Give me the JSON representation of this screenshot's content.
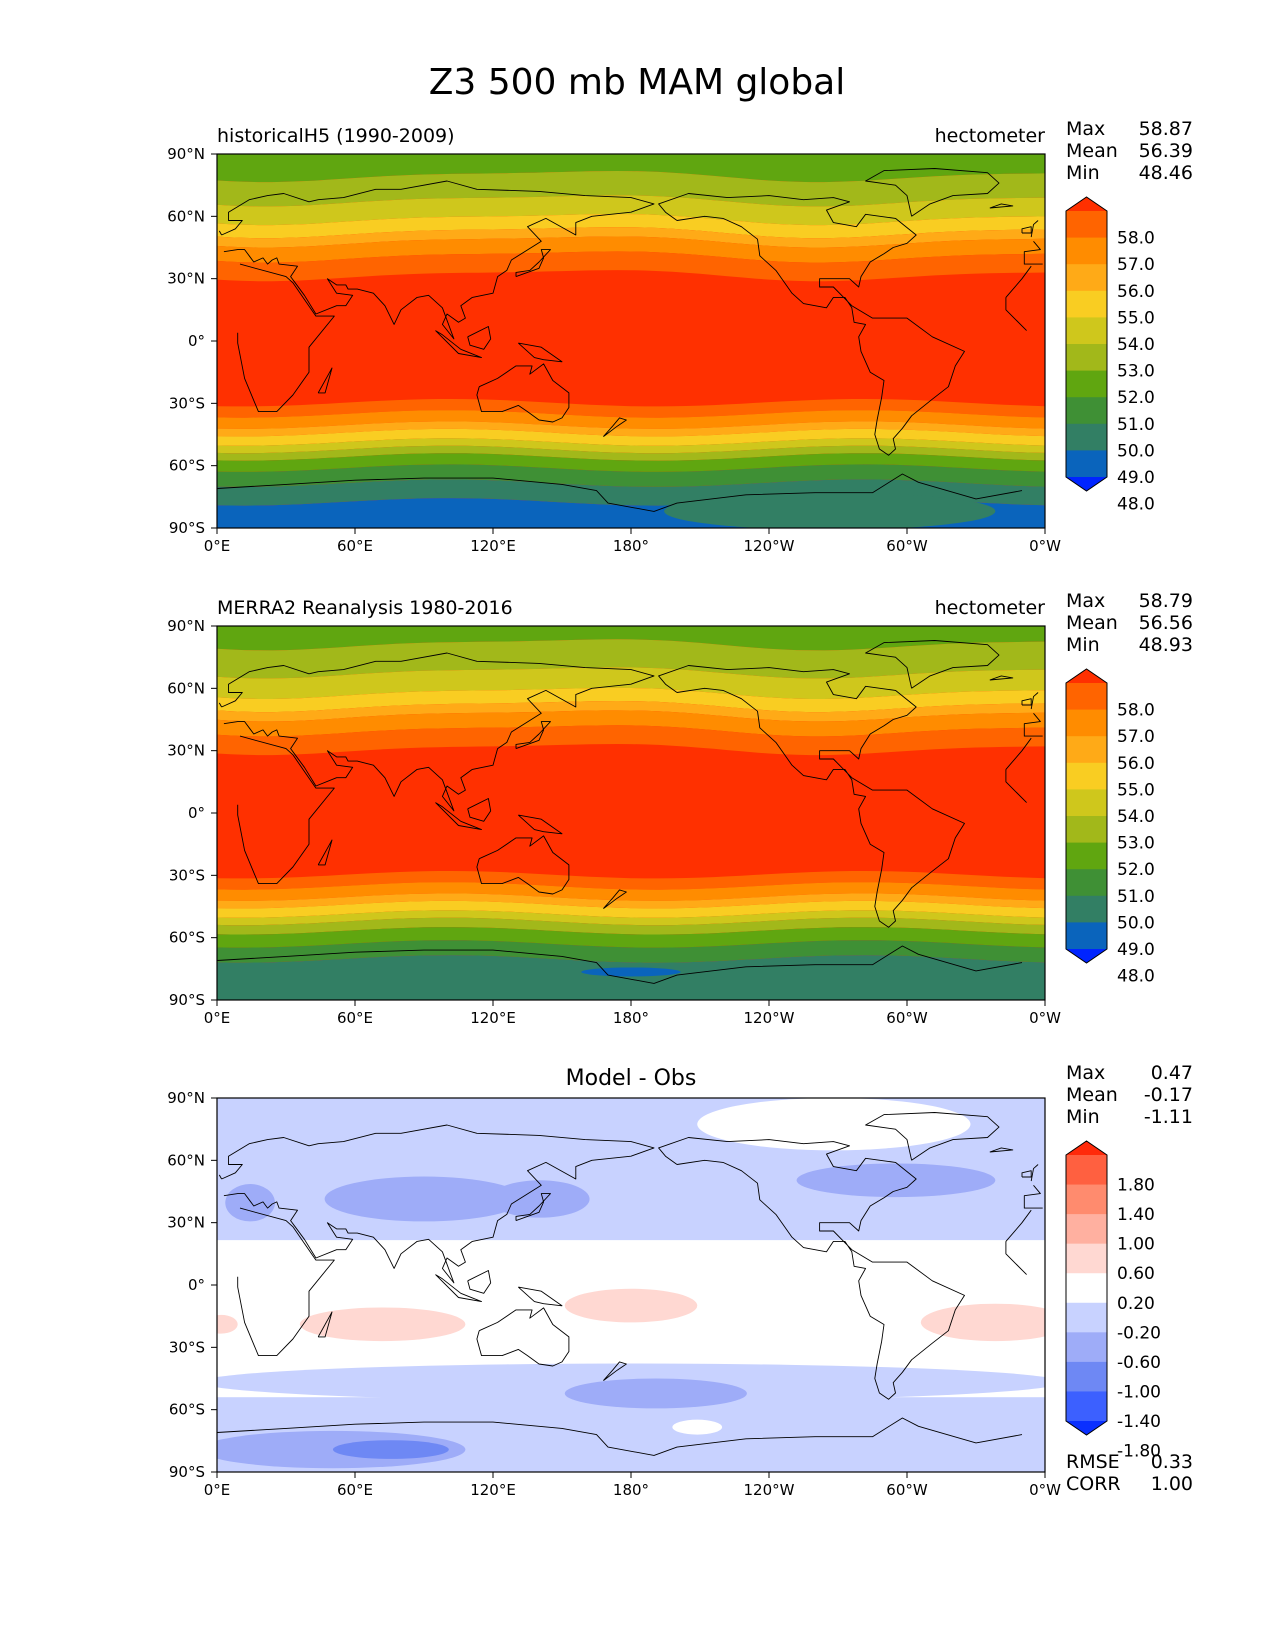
{
  "figure": {
    "title": "Z3 500 mb MAM global"
  },
  "axes": {
    "lat_ticks": [
      "90°N",
      "60°N",
      "30°N",
      "0°",
      "30°S",
      "60°S",
      "90°S"
    ],
    "lon_ticks": [
      "0°E",
      "60°E",
      "120°E",
      "180°",
      "120°W",
      "60°W",
      "0°W"
    ]
  },
  "panels": [
    {
      "left_title": "historicalH5 (1990-2009)",
      "center_title": "",
      "units": "hectometer",
      "stats": [
        {
          "label": "Max",
          "value": "58.87"
        },
        {
          "label": "Mean",
          "value": "56.39"
        },
        {
          "label": "Min",
          "value": "48.46"
        }
      ],
      "colorbar": {
        "labels": [
          "58.0",
          "57.0",
          "56.0",
          "55.0",
          "54.0",
          "53.0",
          "52.0",
          "51.0",
          "50.0",
          "49.0",
          "48.0"
        ],
        "colors": [
          "#FF3000",
          "#FF6400",
          "#FF8C00",
          "#FFAA17",
          "#F9CD22",
          "#CFC71C",
          "#A2B81A",
          "#60A610",
          "#3F9035",
          "#327F64",
          "#0A64BC",
          "#0024FF"
        ]
      },
      "field": "model",
      "extra_stats": []
    },
    {
      "left_title": "MERRA2 Reanalysis 1980-2016",
      "center_title": "",
      "units": "hectometer",
      "stats": [
        {
          "label": "Max",
          "value": "58.79"
        },
        {
          "label": "Mean",
          "value": "56.56"
        },
        {
          "label": "Min",
          "value": "48.93"
        }
      ],
      "colorbar": {
        "labels": [
          "58.0",
          "57.0",
          "56.0",
          "55.0",
          "54.0",
          "53.0",
          "52.0",
          "51.0",
          "50.0",
          "49.0",
          "48.0"
        ],
        "colors": [
          "#FF3000",
          "#FF6400",
          "#FF8C00",
          "#FFAA17",
          "#F9CD22",
          "#CFC71C",
          "#A2B81A",
          "#60A610",
          "#3F9035",
          "#327F64",
          "#0A64BC",
          "#0024FF"
        ]
      },
      "field": "obs",
      "extra_stats": []
    },
    {
      "left_title": "",
      "center_title": "Model - Obs",
      "units": "",
      "stats": [
        {
          "label": "Max",
          "value": "0.47"
        },
        {
          "label": "Mean",
          "value": "-0.17"
        },
        {
          "label": "Min",
          "value": "-1.11"
        }
      ],
      "colorbar": {
        "labels": [
          "1.80",
          "1.40",
          "1.00",
          "0.60",
          "0.20",
          "-0.20",
          "-0.60",
          "-1.00",
          "-1.40",
          "-1.80"
        ],
        "colors": [
          "#FF2A0A",
          "#FF6040",
          "#FF8B6E",
          "#FFB0A0",
          "#FFD8D2",
          "#FFFFFF",
          "#C8D2FF",
          "#9EACF8",
          "#6E88F4",
          "#3C60FF",
          "#0A30FF"
        ]
      },
      "field": "diff",
      "extra_stats": [
        {
          "label": "RMSE",
          "value": "0.33"
        },
        {
          "label": "CORR",
          "value": "1.00"
        }
      ]
    }
  ]
}
